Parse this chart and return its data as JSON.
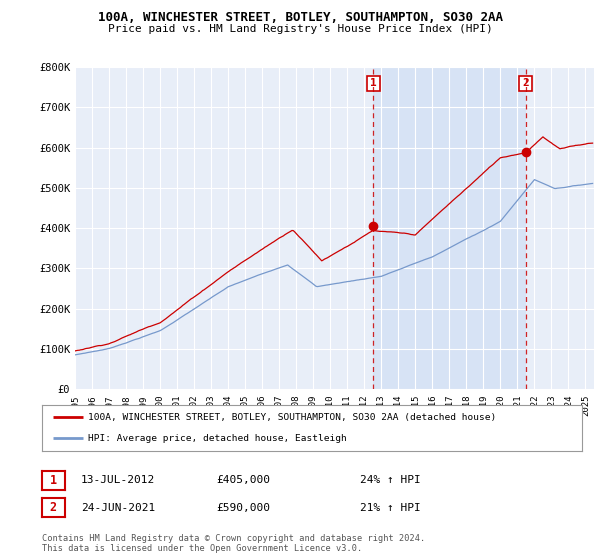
{
  "title_line1": "100A, WINCHESTER STREET, BOTLEY, SOUTHAMPTON, SO30 2AA",
  "title_line2": "Price paid vs. HM Land Registry's House Price Index (HPI)",
  "ylim": [
    0,
    800000
  ],
  "yticks": [
    0,
    100000,
    200000,
    300000,
    400000,
    500000,
    600000,
    700000,
    800000
  ],
  "ytick_labels": [
    "£0",
    "£100K",
    "£200K",
    "£300K",
    "£400K",
    "£500K",
    "£600K",
    "£700K",
    "£800K"
  ],
  "background_color": "#ffffff",
  "plot_bg_color": "#e8eef8",
  "grid_color": "#ffffff",
  "shade_color": "#d0dff5",
  "red_line_color": "#cc0000",
  "blue_line_color": "#7799cc",
  "sale1_x": 2012.54,
  "sale1_y": 405000,
  "sale2_x": 2021.48,
  "sale2_y": 590000,
  "vline1_x": 2012.54,
  "vline2_x": 2021.48,
  "legend_red_label": "100A, WINCHESTER STREET, BOTLEY, SOUTHAMPTON, SO30 2AA (detached house)",
  "legend_blue_label": "HPI: Average price, detached house, Eastleigh",
  "sale1_date": "13-JUL-2012",
  "sale1_price": "£405,000",
  "sale1_hpi": "24% ↑ HPI",
  "sale2_date": "24-JUN-2021",
  "sale2_price": "£590,000",
  "sale2_hpi": "21% ↑ HPI",
  "footnote": "Contains HM Land Registry data © Crown copyright and database right 2024.\nThis data is licensed under the Open Government Licence v3.0.",
  "xmin": 1995,
  "xmax": 2025.5
}
